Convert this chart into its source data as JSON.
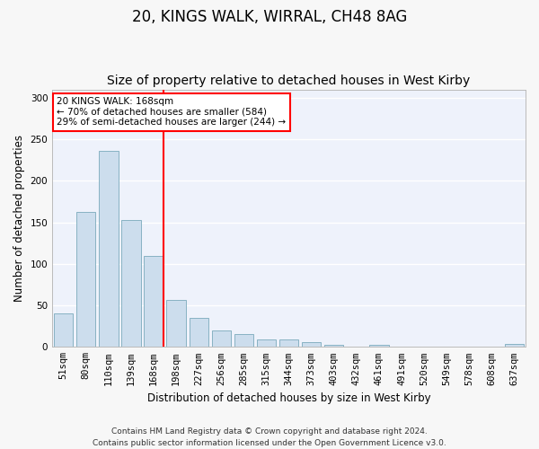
{
  "title": "20, KINGS WALK, WIRRAL, CH48 8AG",
  "subtitle": "Size of property relative to detached houses in West Kirby",
  "xlabel": "Distribution of detached houses by size in West Kirby",
  "ylabel": "Number of detached properties",
  "categories": [
    "51sqm",
    "80sqm",
    "110sqm",
    "139sqm",
    "168sqm",
    "198sqm",
    "227sqm",
    "256sqm",
    "285sqm",
    "315sqm",
    "344sqm",
    "373sqm",
    "403sqm",
    "432sqm",
    "461sqm",
    "491sqm",
    "520sqm",
    "549sqm",
    "578sqm",
    "608sqm",
    "637sqm"
  ],
  "values": [
    40,
    162,
    236,
    153,
    110,
    57,
    35,
    20,
    16,
    9,
    9,
    6,
    2,
    0,
    3,
    0,
    0,
    0,
    0,
    0,
    4
  ],
  "bar_color": "#ccdded",
  "bar_edge_color": "#7aaabb",
  "vline_color": "red",
  "annotation_text": "20 KINGS WALK: 168sqm\n← 70% of detached houses are smaller (584)\n29% of semi-detached houses are larger (244) →",
  "annotation_box_facecolor": "white",
  "annotation_box_edgecolor": "red",
  "ylim": [
    0,
    310
  ],
  "yticks": [
    0,
    50,
    100,
    150,
    200,
    250,
    300
  ],
  "footer": "Contains HM Land Registry data © Crown copyright and database right 2024.\nContains public sector information licensed under the Open Government Licence v3.0.",
  "bg_color": "#eef2fb",
  "grid_color": "#ffffff",
  "fig_facecolor": "#f7f7f7",
  "title_fontsize": 12,
  "subtitle_fontsize": 10,
  "axis_label_fontsize": 8.5,
  "tick_fontsize": 7.5,
  "annotation_fontsize": 7.5,
  "footer_fontsize": 6.5
}
